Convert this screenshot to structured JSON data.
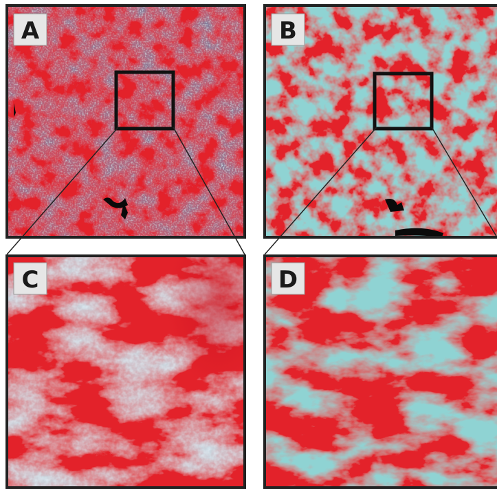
{
  "figure": {
    "panels": [
      {
        "id": "A",
        "label": "A",
        "kind": "false-color-satellite"
      },
      {
        "id": "B",
        "label": "B",
        "kind": "classified-map"
      },
      {
        "id": "C",
        "label": "C",
        "kind": "false-color-satellite-zoom"
      },
      {
        "id": "D",
        "label": "D",
        "kind": "classified-map-zoom"
      }
    ],
    "colors": {
      "vegetation_red": "#e3242b",
      "deep_red": "#c8101e",
      "bare_cyan": "#8fd3d3",
      "pale_blue": "#b8d3e0",
      "slate_blue": "#5b7d9e",
      "dark": "#0a0a0a",
      "frame": "#222222",
      "label_bg": "#e6e6e6"
    }
  }
}
